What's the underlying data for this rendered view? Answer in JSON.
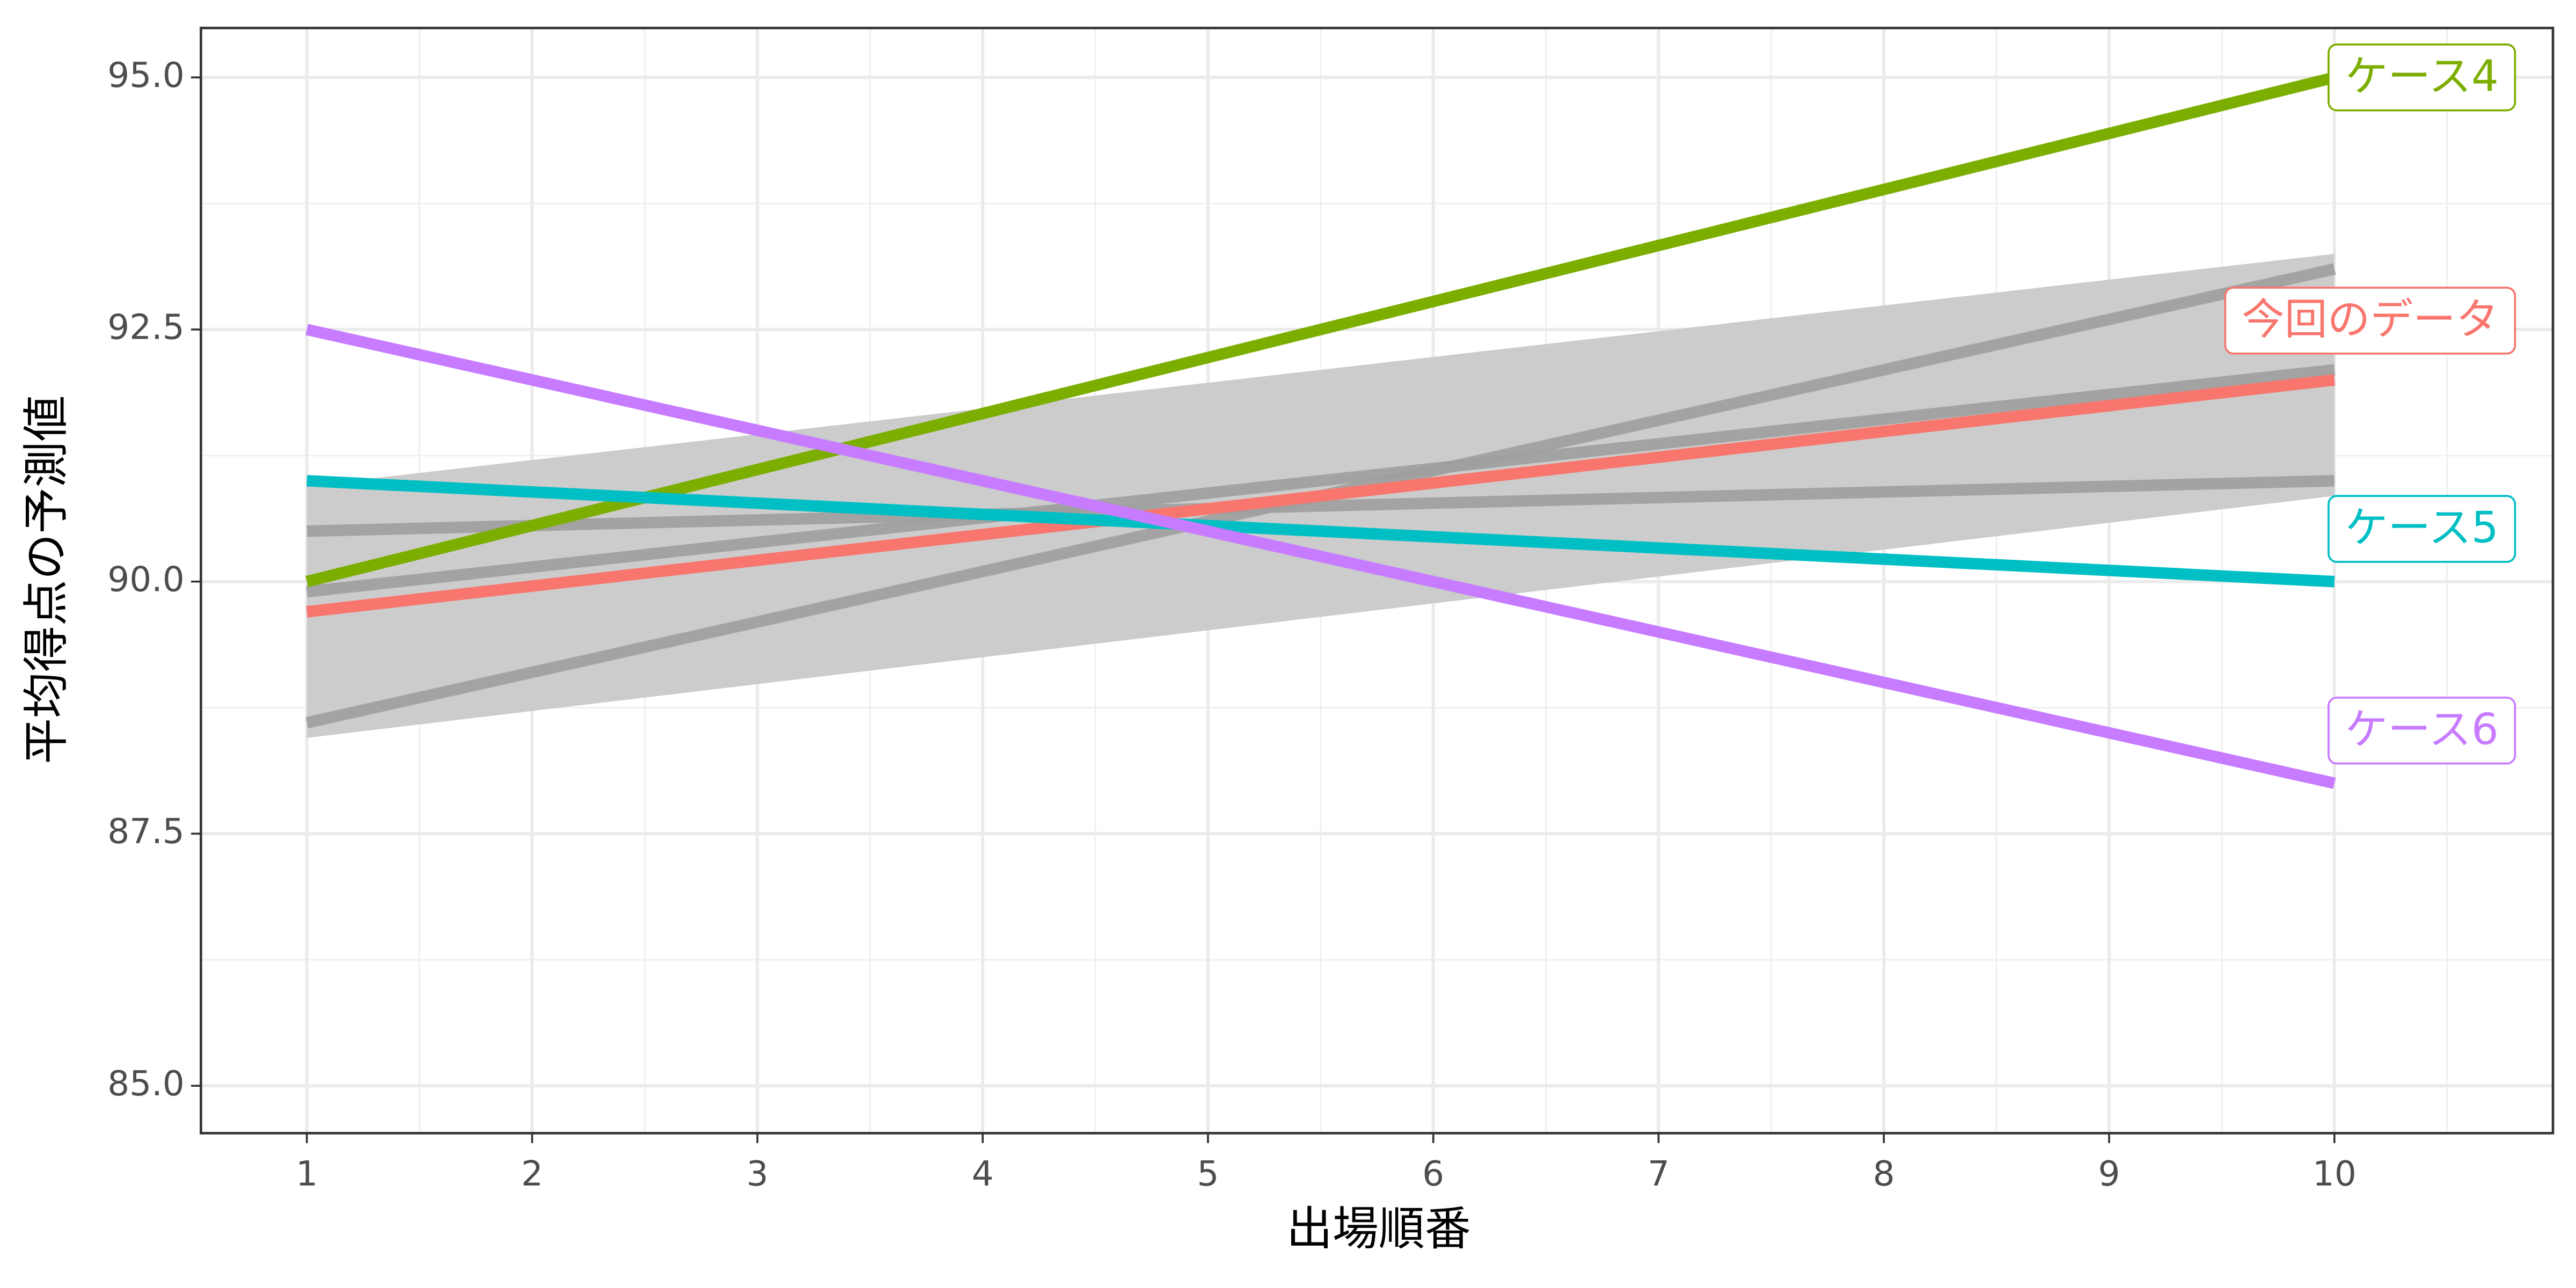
{
  "chart_data": {
    "type": "line",
    "xlabel": "出場順番",
    "ylabel": "平均得点の予測値",
    "x": [
      1,
      10
    ],
    "band": {
      "color": "#cccccc",
      "lower": [
        88.45,
        90.85
      ],
      "upper": [
        90.95,
        93.25
      ]
    },
    "series": [
      {
        "color": "#9e9e9e",
        "values": [
          88.6,
          93.1
        ]
      },
      {
        "color": "#9e9e9e",
        "values": [
          90.5,
          91.0
        ]
      },
      {
        "color": "#9e9e9e",
        "values": [
          89.9,
          92.1
        ]
      },
      {
        "name": "ケース4",
        "color": "#7CAE00",
        "values": [
          90.0,
          95.0
        ]
      },
      {
        "name": "今回のデータ",
        "color": "#F8766D",
        "values": [
          89.7,
          92.0
        ]
      },
      {
        "name": "ケース5",
        "color": "#00BFC4",
        "values": [
          91.0,
          90.0
        ]
      },
      {
        "name": "ケース6",
        "color": "#C77CFF",
        "values": [
          92.5,
          88.0
        ]
      }
    ],
    "xlim": [
      0.53,
      10.97
    ],
    "ylim": [
      84.53,
      95.49
    ],
    "xticks": [
      1,
      2,
      3,
      4,
      5,
      6,
      7,
      8,
      9,
      10
    ],
    "yticks": [
      {
        "value": 85,
        "label": "85.0"
      },
      87.5,
      {
        "value": 90,
        "label": "90.0"
      },
      92.5,
      {
        "value": 95,
        "label": "95.0"
      }
    ],
    "grid": true
  }
}
